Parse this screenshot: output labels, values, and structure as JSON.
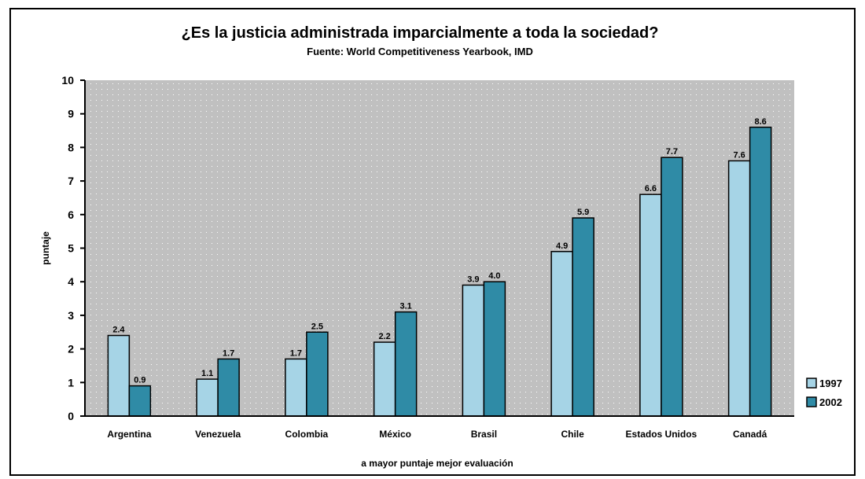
{
  "chart_data": {
    "type": "bar",
    "title": "¿Es la justicia administrada imparcialmente a toda la sociedad?",
    "subtitle": "Fuente: World Competitiveness Yearbook, IMD",
    "xlabel": "a mayor puntaje mejor evaluación",
    "ylabel": "puntaje",
    "ylim": [
      0,
      10
    ],
    "yticks": [
      0,
      1,
      2,
      3,
      4,
      5,
      6,
      7,
      8,
      9,
      10
    ],
    "categories": [
      "Argentina",
      "Venezuela",
      "Colombia",
      "México",
      "Brasil",
      "Chile",
      "Estados Unidos",
      "Canadá"
    ],
    "series": [
      {
        "name": "1997",
        "values": [
          2.4,
          1.1,
          1.7,
          2.2,
          3.9,
          4.9,
          6.6,
          7.6
        ],
        "labels": [
          "2.4",
          "1.1",
          "1.7",
          "2.2",
          "3.9",
          "4.9",
          "6.6",
          "7.6"
        ],
        "color": "#a6d4e6"
      },
      {
        "name": "2002",
        "values": [
          0.9,
          1.7,
          2.5,
          3.1,
          4.0,
          5.9,
          7.7,
          8.6
        ],
        "labels": [
          "0.9",
          "1.7",
          "2.5",
          "3.1",
          "4.0",
          "5.9",
          "7.7",
          "8.6"
        ],
        "color": "#2f8ba6"
      }
    ],
    "grid": false,
    "plot_background": "#c0c0c0",
    "legend": "right"
  }
}
